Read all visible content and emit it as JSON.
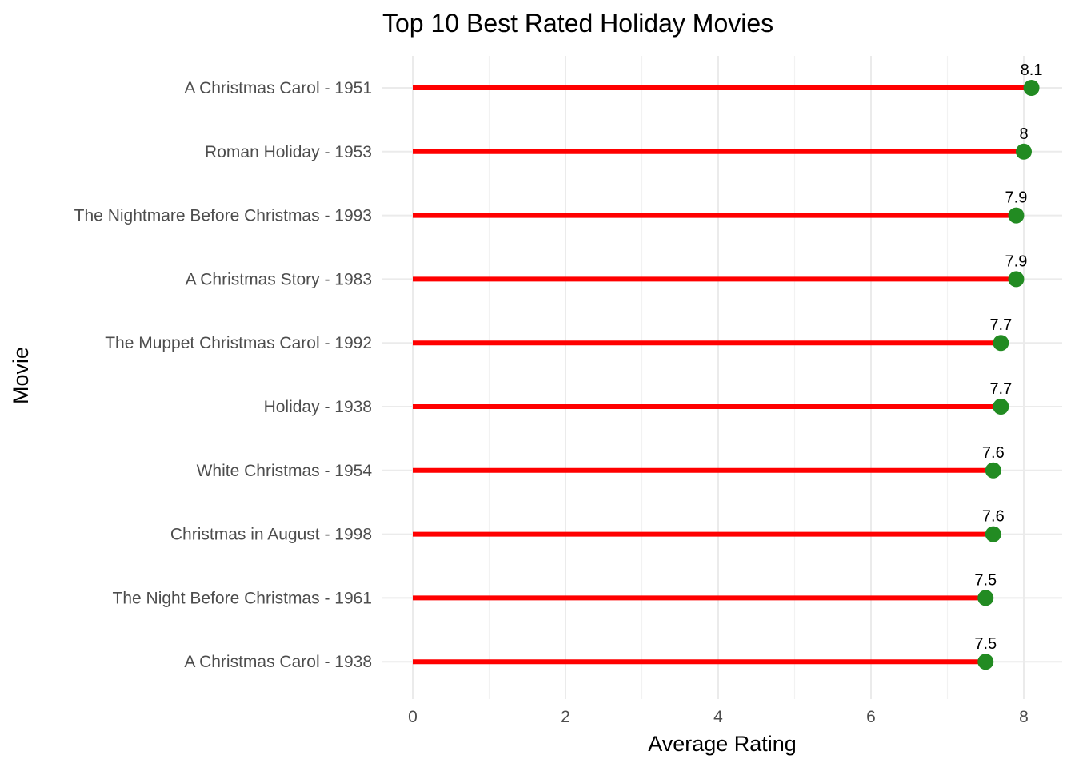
{
  "chart_data": {
    "type": "lollipop",
    "title": "Top 10 Best Rated Holiday Movies",
    "xlabel": "Average Rating",
    "ylabel": "Movie",
    "xlim": [
      0,
      8.1
    ],
    "x_ticks": [
      0,
      2,
      4,
      6,
      8
    ],
    "grid": true,
    "legend": "none",
    "colors": {
      "stem": "#ff0000",
      "point": "#228b22",
      "grid_major": "#ebebeb",
      "grid_minor": "#f2f2f2"
    },
    "categories": [
      "A Christmas Carol - 1951",
      "Roman Holiday - 1953",
      "The Nightmare Before Christmas - 1993",
      "A Christmas Story - 1983",
      "The Muppet Christmas Carol - 1992",
      "Holiday - 1938",
      "White Christmas - 1954",
      "Christmas in August - 1998",
      "The Night Before Christmas - 1961",
      "A Christmas Carol - 1938"
    ],
    "values": [
      8.1,
      8,
      7.9,
      7.9,
      7.7,
      7.7,
      7.6,
      7.6,
      7.5,
      7.5
    ],
    "value_labels": [
      "8.1",
      "8",
      "7.9",
      "7.9",
      "7.7",
      "7.7",
      "7.6",
      "7.6",
      "7.5",
      "7.5"
    ]
  }
}
